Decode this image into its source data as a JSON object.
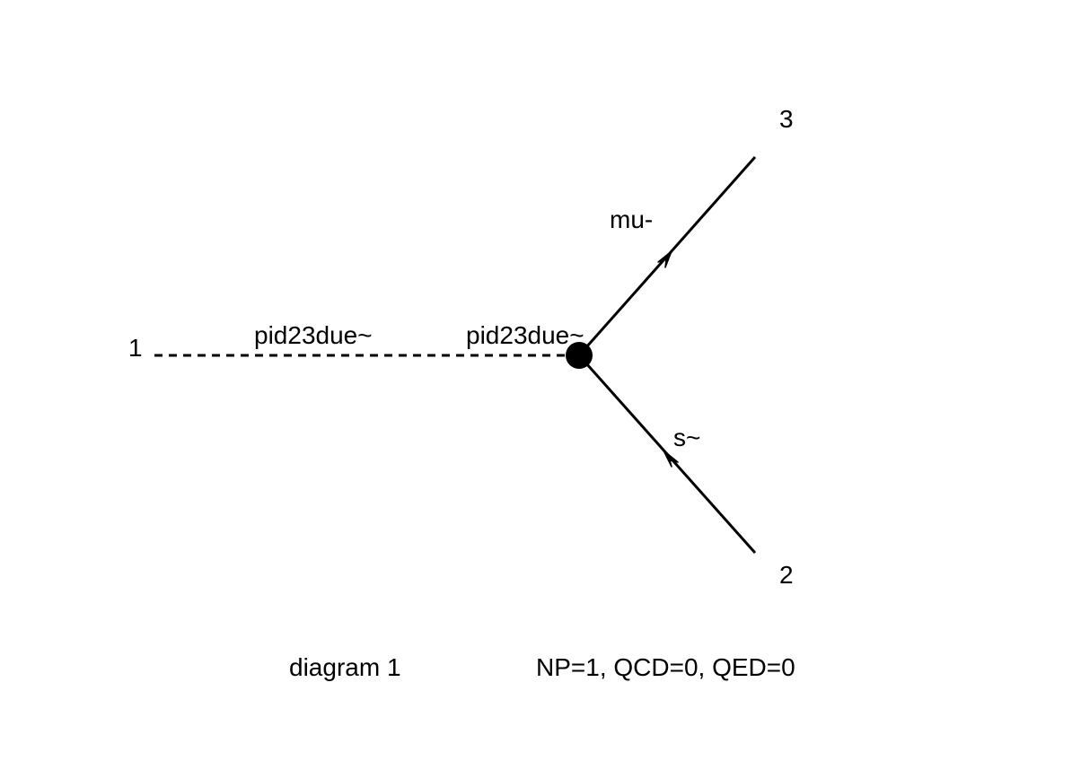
{
  "diagram": {
    "propagators": [
      {
        "id": "incoming",
        "style": "dashed",
        "label": "pid23due~",
        "endpoint_label": "1"
      },
      {
        "id": "outgoing-3",
        "style": "solid",
        "label": "mu-",
        "endpoint_label": "3",
        "arrow": "toward-endpoint"
      },
      {
        "id": "outgoing-2",
        "style": "solid",
        "label": "s~",
        "endpoint_label": "2",
        "arrow": "toward-vertex"
      }
    ],
    "vertex_label": "pid23due~",
    "caption": {
      "name": "diagram 1",
      "couplings": "NP=1, QCD=0, QED=0"
    },
    "colors": {
      "line": "#000000",
      "background": "#ffffff"
    }
  }
}
